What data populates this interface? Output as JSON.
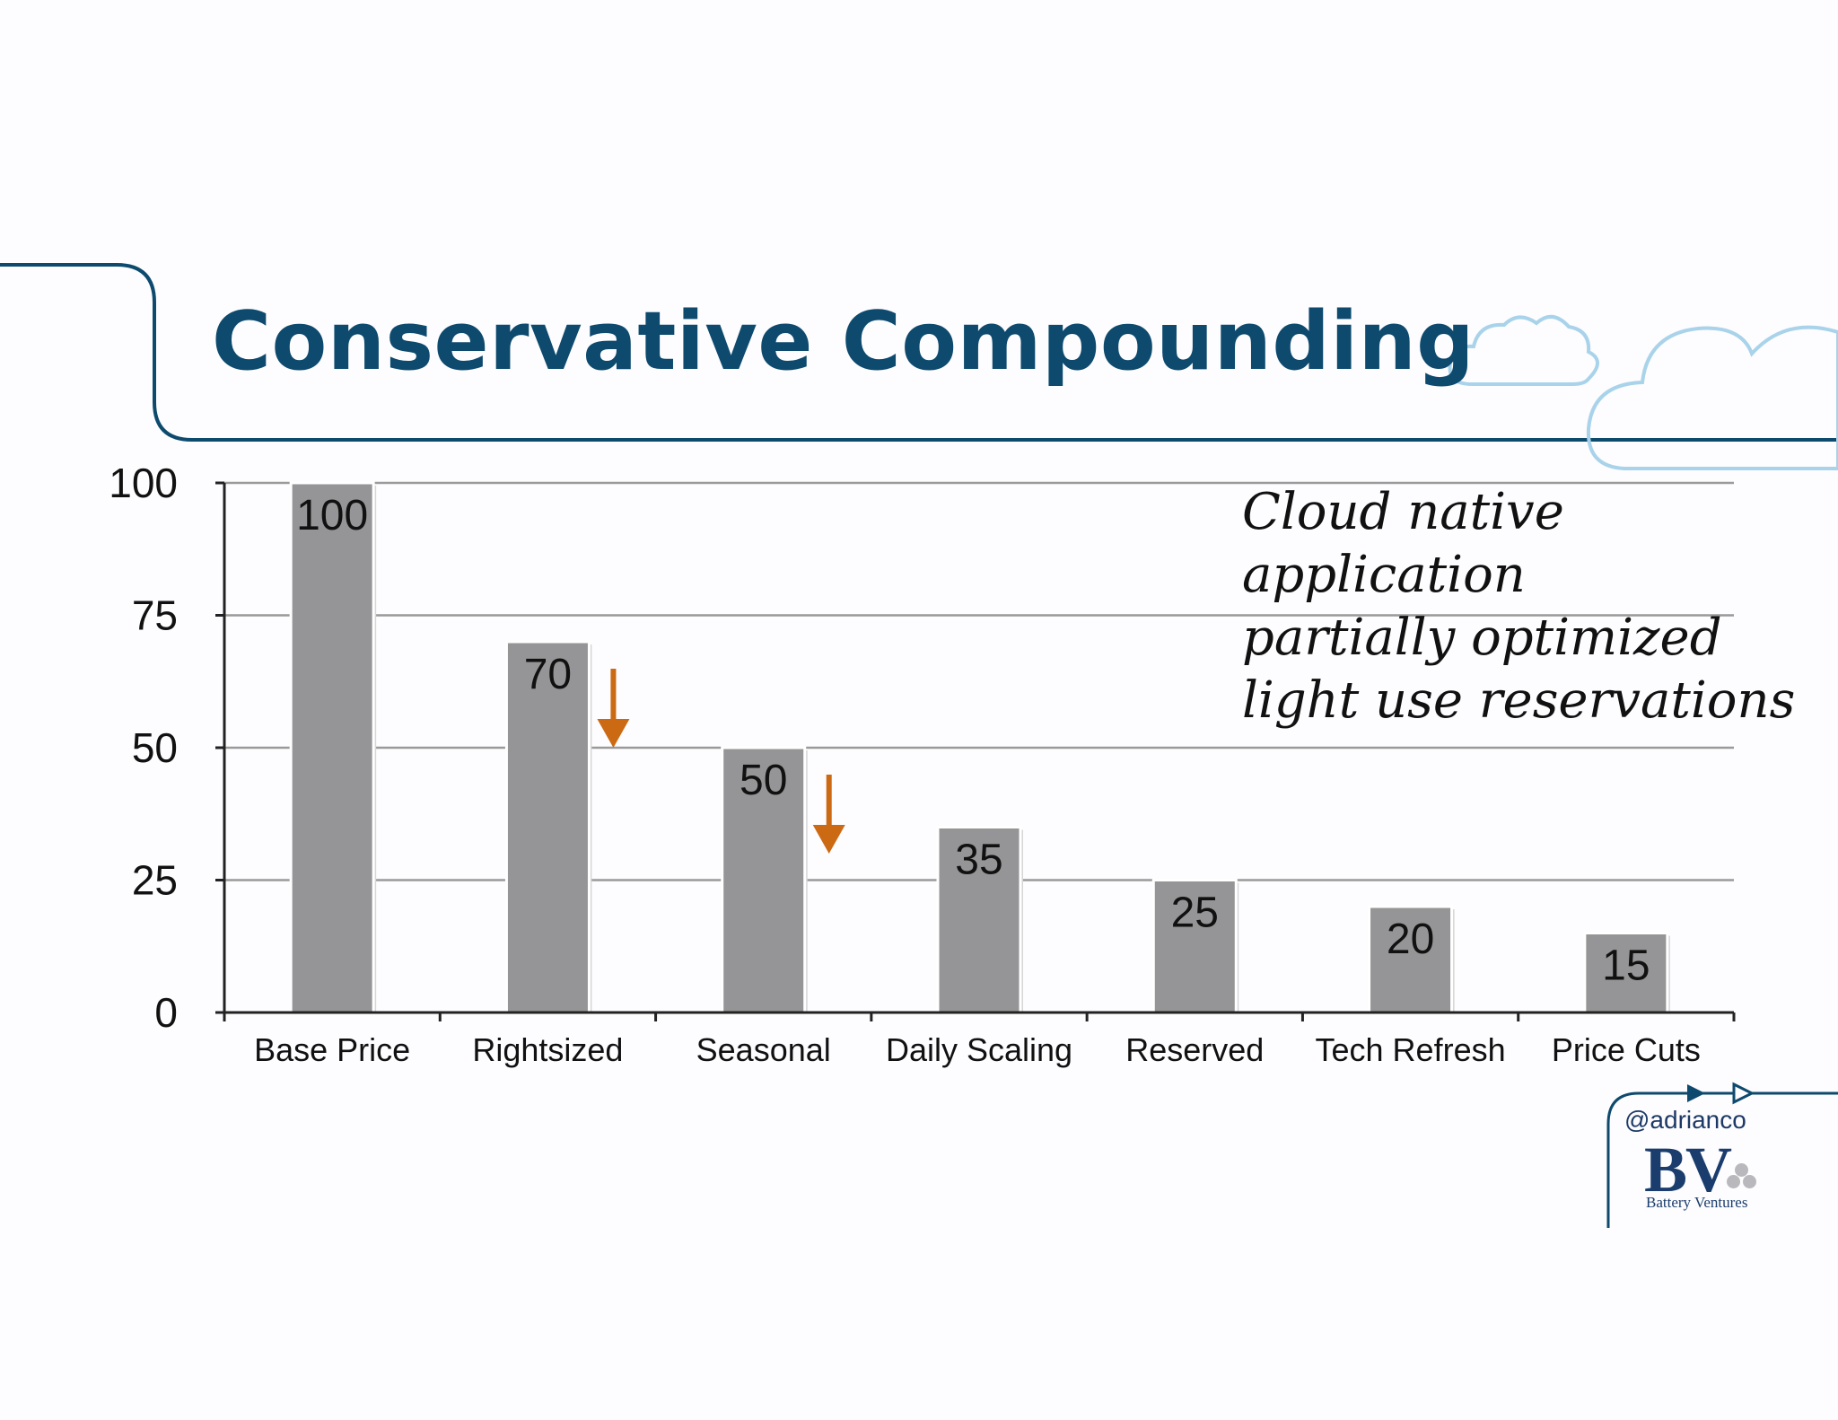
{
  "slide": {
    "title": "Conservative Compounding",
    "annotation_lines": [
      "Cloud native",
      "application",
      "partially optimized",
      "light use reservations"
    ],
    "handle": "@adrianco",
    "logo_text": "BV",
    "logo_subtitle": "Battery Ventures",
    "colors": {
      "title": "#0d4a6e",
      "frame": "#0d4a6e",
      "bar": "#959597",
      "arrow": "#cc6a14",
      "cloud": "#a8d3ea",
      "grid": "#9a9a9a"
    },
    "icons": [
      "cloud-icon",
      "down-arrow-icon",
      "battery-ventures-logo"
    ]
  },
  "chart_data": {
    "type": "bar",
    "title": "",
    "xlabel": "",
    "ylabel": "",
    "categories": [
      "Base Price",
      "Rightsized",
      "Seasonal",
      "Daily Scaling",
      "Reserved",
      "Tech Refresh",
      "Price Cuts"
    ],
    "values": [
      100,
      70,
      50,
      35,
      25,
      20,
      15
    ],
    "data_labels": [
      "100",
      "70",
      "50",
      "35",
      "25",
      "20",
      "15"
    ],
    "ylim": [
      0,
      100
    ],
    "yticks": [
      0,
      25,
      50,
      75,
      100
    ],
    "ytick_labels": [
      "0",
      "25",
      "50",
      "75",
      "100"
    ],
    "grid": true,
    "legend": "none",
    "annotations": [
      "down arrow after Rightsized",
      "down arrow after Seasonal"
    ]
  }
}
